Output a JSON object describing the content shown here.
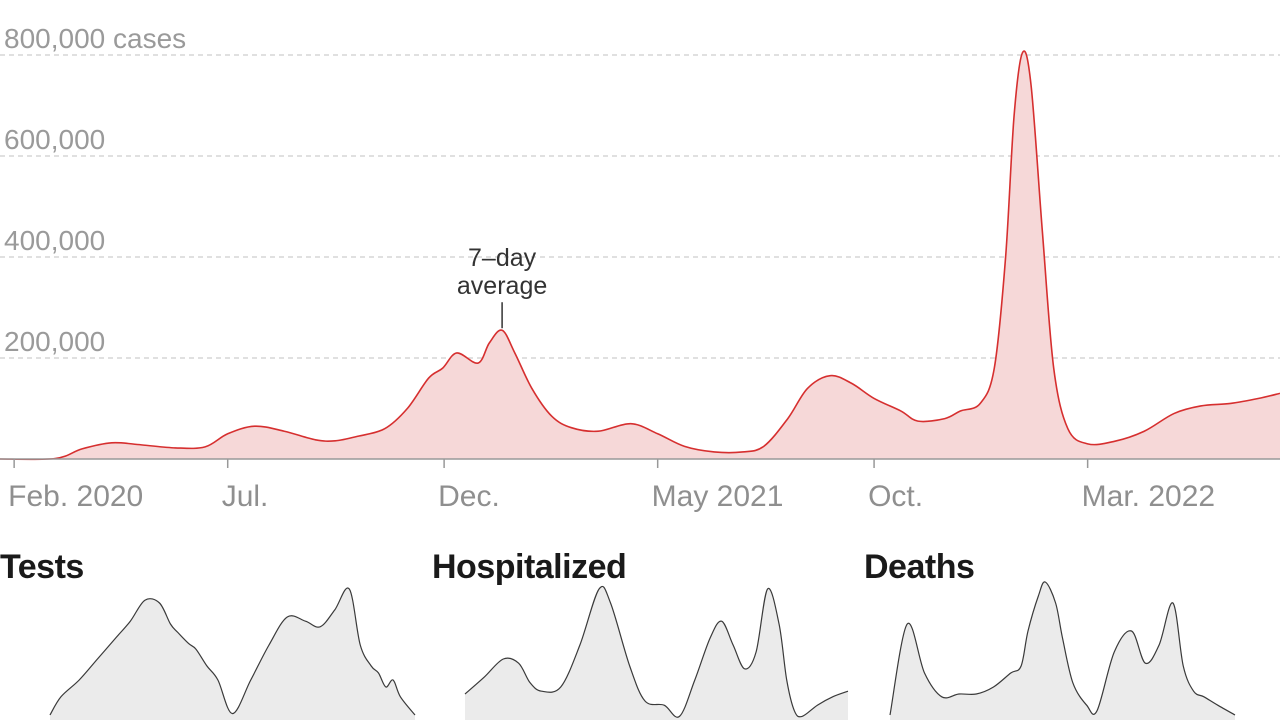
{
  "colors": {
    "cases_line": "#d62f2f",
    "cases_fill": "#f6d8d8",
    "small_line": "#3a3a3a",
    "small_fill": "#ebebeb",
    "grid": "#d6d6d6",
    "axis": "#999999"
  },
  "chart_data": [
    {
      "type": "area",
      "title": "",
      "xlabel": "",
      "ylabel": "",
      "y_unit_label": "cases",
      "ylim": [
        0,
        800000
      ],
      "yticks": [
        {
          "value": 200000,
          "label": "200,000"
        },
        {
          "value": 400000,
          "label": "400,000"
        },
        {
          "value": 600000,
          "label": "600,000"
        },
        {
          "value": 800000,
          "label": "800,000 cases"
        }
      ],
      "xlim": [
        "2020-01-22",
        "2022-07-15"
      ],
      "xticks": [
        {
          "date": "2020-02-01",
          "label": "Feb. 2020"
        },
        {
          "date": "2020-07-01",
          "label": "Jul."
        },
        {
          "date": "2020-12-01",
          "label": "Dec."
        },
        {
          "date": "2021-05-01",
          "label": "May 2021"
        },
        {
          "date": "2021-10-01",
          "label": "Oct."
        },
        {
          "date": "2022-03-01",
          "label": "Mar. 2022"
        }
      ],
      "grid": true,
      "annotation": {
        "line1": "7–day",
        "line2": "average",
        "date": "2021-01-11",
        "value": 255000
      },
      "series": [
        {
          "x": [
            "2020-01-22",
            "2020-03-01",
            "2020-03-20",
            "2020-04-10",
            "2020-05-01",
            "2020-05-25",
            "2020-06-15",
            "2020-07-01",
            "2020-07-20",
            "2020-08-10",
            "2020-09-01",
            "2020-09-15",
            "2020-10-01",
            "2020-10-20",
            "2020-11-05",
            "2020-11-20",
            "2020-11-30",
            "2020-12-10",
            "2020-12-25",
            "2021-01-02",
            "2021-01-11",
            "2021-01-20",
            "2021-02-01",
            "2021-02-15",
            "2021-03-01",
            "2021-03-20",
            "2021-04-12",
            "2021-05-01",
            "2021-05-20",
            "2021-06-10",
            "2021-06-30",
            "2021-07-15",
            "2021-08-01",
            "2021-08-15",
            "2021-08-31",
            "2021-09-15",
            "2021-10-01",
            "2021-10-20",
            "2021-11-01",
            "2021-11-20",
            "2021-12-01",
            "2021-12-15",
            "2021-12-25",
            "2022-01-02",
            "2022-01-08",
            "2022-01-14",
            "2022-01-20",
            "2022-01-28",
            "2022-02-05",
            "2022-02-15",
            "2022-03-01",
            "2022-03-20",
            "2022-04-10",
            "2022-05-01",
            "2022-05-20",
            "2022-06-10",
            "2022-06-30",
            "2022-07-15"
          ],
          "values": [
            0,
            1000,
            20000,
            32000,
            28000,
            22000,
            24000,
            50000,
            65000,
            55000,
            38000,
            36000,
            45000,
            60000,
            100000,
            160000,
            180000,
            210000,
            190000,
            230000,
            255000,
            210000,
            140000,
            85000,
            62000,
            55000,
            70000,
            50000,
            25000,
            14000,
            14000,
            25000,
            80000,
            140000,
            165000,
            150000,
            120000,
            95000,
            75000,
            80000,
            95000,
            110000,
            180000,
            400000,
            680000,
            805000,
            740000,
            450000,
            180000,
            60000,
            30000,
            35000,
            55000,
            90000,
            105000,
            110000,
            120000,
            130000
          ]
        }
      ]
    },
    {
      "type": "area",
      "title": "Tests",
      "series": [
        {
          "x": [
            0,
            3,
            8,
            13,
            18,
            22,
            26,
            30,
            33,
            35,
            38,
            40,
            43,
            46,
            50,
            55,
            60,
            65,
            70,
            74,
            78,
            82,
            85,
            88,
            90,
            92,
            94,
            96,
            100
          ],
          "values": [
            0.05,
            0.18,
            0.3,
            0.45,
            0.6,
            0.72,
            0.87,
            0.85,
            0.7,
            0.64,
            0.56,
            0.52,
            0.4,
            0.3,
            0.06,
            0.3,
            0.55,
            0.75,
            0.72,
            0.68,
            0.8,
            0.95,
            0.55,
            0.4,
            0.35,
            0.25,
            0.3,
            0.18,
            0.05
          ]
        }
      ]
    },
    {
      "type": "area",
      "title": "Hospitalized",
      "series": [
        {
          "x": [
            0,
            5,
            10,
            14,
            17,
            20,
            25,
            30,
            35,
            38,
            43,
            47,
            52,
            56,
            60,
            64,
            67,
            70,
            73,
            76,
            79,
            82,
            84,
            86,
            88,
            92,
            96,
            100
          ],
          "values": [
            0.2,
            0.32,
            0.45,
            0.42,
            0.28,
            0.22,
            0.25,
            0.55,
            0.95,
            0.85,
            0.4,
            0.15,
            0.12,
            0.04,
            0.3,
            0.6,
            0.72,
            0.55,
            0.38,
            0.5,
            0.95,
            0.7,
            0.3,
            0.08,
            0.04,
            0.12,
            0.18,
            0.22
          ]
        }
      ]
    },
    {
      "type": "area",
      "title": "Deaths",
      "series": [
        {
          "x": [
            0,
            5,
            10,
            15,
            20,
            25,
            30,
            35,
            38,
            40,
            43,
            45,
            48,
            50,
            53,
            57,
            60,
            65,
            70,
            74,
            78,
            82,
            85,
            88,
            91,
            95,
            100
          ],
          "values": [
            0.05,
            0.7,
            0.35,
            0.18,
            0.2,
            0.2,
            0.25,
            0.35,
            0.4,
            0.65,
            0.9,
            1.0,
            0.85,
            0.6,
            0.28,
            0.12,
            0.08,
            0.5,
            0.65,
            0.42,
            0.55,
            0.85,
            0.4,
            0.22,
            0.18,
            0.12,
            0.05
          ]
        }
      ]
    }
  ]
}
